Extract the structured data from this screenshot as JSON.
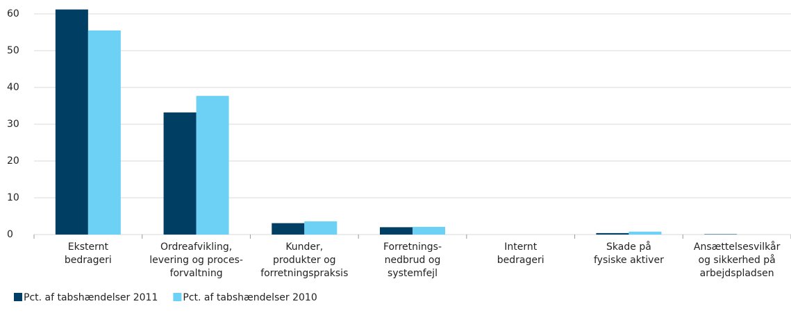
{
  "chart_data": {
    "type": "bar",
    "categories": [
      "Eksternt\nbedrageri",
      "Ordreafvikling,\nlevering og proces-\nforvaltning",
      "Kunder,\nprodukter og\nforretningspraksis",
      "Forretnings-\nnedbrud og\nsystemfejl",
      "Internt\nbedrageri",
      "Skade på\nfysiske aktiver",
      "Ansættelsesvilkår\nog sikkerhed på\narbejdspladsen"
    ],
    "series": [
      {
        "name": "Pct. af tabshændelser 2011",
        "color": "#003f63",
        "values": [
          61.2,
          33.2,
          3.1,
          2.0,
          0,
          0.4,
          0.1
        ]
      },
      {
        "name": "Pct. af tabshændelser 2010",
        "color": "#6dd0f5",
        "values": [
          55.5,
          37.7,
          3.6,
          2.1,
          0,
          0.8,
          0
        ]
      }
    ],
    "ylim": [
      0,
      60
    ],
    "yticks": [
      0,
      10,
      20,
      30,
      40,
      50,
      60
    ],
    "grid": true,
    "legend": "bottom-left"
  }
}
